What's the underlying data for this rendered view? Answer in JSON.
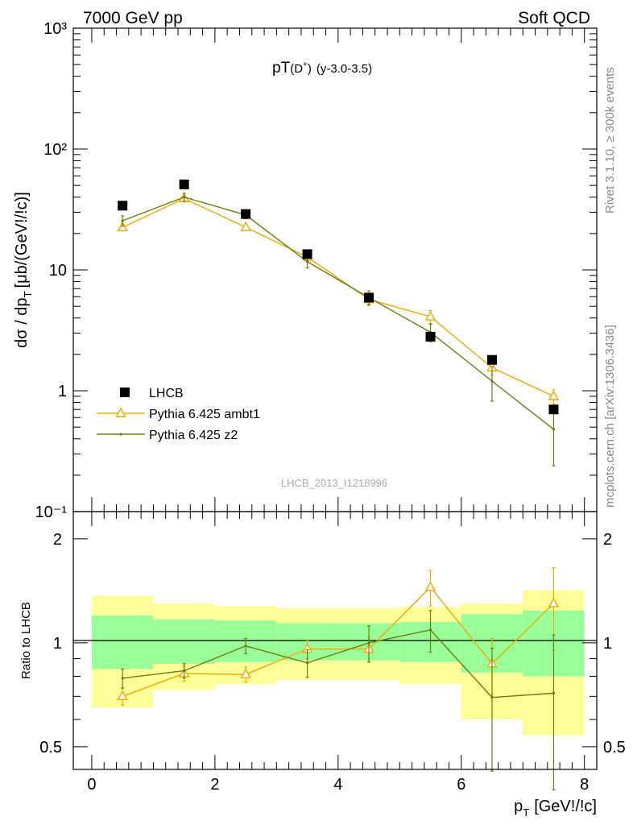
{
  "header": {
    "left": "7000 GeV pp",
    "right": "Soft QCD"
  },
  "side_labels": {
    "rivet": "Rivet 3.1.10, ≥ 300k events",
    "mcplots": "mcplots.cern.ch [arXiv:1306.3436]"
  },
  "colors": {
    "data": "#000000",
    "ambt1": "#f0a800",
    "z2": "#6b7d10",
    "band_inner": "#99ff99",
    "band_outer": "#ffff99"
  },
  "chart_data": [
    {
      "type": "scatter",
      "title": "pT",
      "title_sub": "D",
      "title_sup": "+",
      "title_suffix": "(y-3.0-3.5)",
      "watermark": "LHCB_2013_I1218996",
      "ylabel": "dσ / dp",
      "ylabel_sub": "T",
      "ylabel_suffix": "[μb/(GeV!/!c)]",
      "yscale": "log",
      "ylim": [
        0.1,
        1000
      ],
      "ytick_labels": [
        "10⁻¹",
        "1",
        "10",
        "10²",
        "10³"
      ],
      "xlim": [
        -0.3,
        8.2
      ],
      "legend_position": "lower-left",
      "series": [
        {
          "name": "LHCB",
          "style": "square",
          "x": [
            0.5,
            1.5,
            2.5,
            3.5,
            4.5,
            5.5,
            6.5,
            7.5
          ],
          "y": [
            34,
            51,
            29,
            13.5,
            5.9,
            2.8,
            1.8,
            0.7
          ],
          "yerr": [
            0,
            0,
            0,
            0,
            0,
            0,
            0,
            0
          ]
        },
        {
          "name": "Pythia 6.425 ambt1",
          "style": "triangle",
          "x": [
            0.5,
            1.5,
            2.5,
            3.5,
            4.5,
            5.5,
            6.5,
            7.5
          ],
          "y": [
            22.5,
            39,
            22.5,
            12.8,
            5.7,
            4.1,
            1.55,
            0.9
          ],
          "yerr": [
            1.5,
            2,
            1.2,
            1.0,
            0.5,
            0.5,
            0.2,
            0.12
          ]
        },
        {
          "name": "Pythia 6.425 z2",
          "style": "dot",
          "x": [
            0.5,
            1.5,
            2.5,
            3.5,
            4.5,
            5.5,
            6.5,
            7.5
          ],
          "y": [
            25.5,
            40,
            28.5,
            11.7,
            5.9,
            3.05,
            1.2,
            0.48
          ],
          "yerr": [
            2.5,
            3,
            2.0,
            1.3,
            0.8,
            0.5,
            0.38,
            0.24
          ]
        }
      ]
    },
    {
      "type": "scatter",
      "ylabel": "Ratio to LHCB",
      "xlabel": "p",
      "xlabel_sub": "T",
      "xlabel_suffix": "[GeV!/!c]",
      "yscale": "log",
      "ylim": [
        0.43,
        2.4
      ],
      "ytick_labels": [
        "0.5",
        "1",
        "2"
      ],
      "xlim": [
        -0.3,
        8.2
      ],
      "xtick_labels": [
        "0",
        "2",
        "4",
        "6",
        "8"
      ],
      "bands": [
        {
          "x0": 0,
          "x1": 1,
          "inner": [
            0.84,
            1.2
          ],
          "outer": [
            0.65,
            1.37
          ]
        },
        {
          "x0": 1,
          "x1": 2,
          "inner": [
            0.87,
            1.17
          ],
          "outer": [
            0.73,
            1.3
          ]
        },
        {
          "x0": 2,
          "x1": 3,
          "inner": [
            0.88,
            1.16
          ],
          "outer": [
            0.76,
            1.28
          ]
        },
        {
          "x0": 3,
          "x1": 4,
          "inner": [
            0.89,
            1.14
          ],
          "outer": [
            0.78,
            1.26
          ]
        },
        {
          "x0": 4,
          "x1": 5,
          "inner": [
            0.89,
            1.14
          ],
          "outer": [
            0.78,
            1.26
          ]
        },
        {
          "x0": 5,
          "x1": 6,
          "inner": [
            0.88,
            1.15
          ],
          "outer": [
            0.76,
            1.27
          ]
        },
        {
          "x0": 6,
          "x1": 7,
          "inner": [
            0.82,
            1.21
          ],
          "outer": [
            0.6,
            1.3
          ]
        },
        {
          "x0": 7,
          "x1": 8,
          "inner": [
            0.8,
            1.24
          ],
          "outer": [
            0.54,
            1.42
          ]
        }
      ],
      "series": [
        {
          "name": "Pythia 6.425 ambt1",
          "style": "triangle",
          "x": [
            0.5,
            1.5,
            2.5,
            3.5,
            4.5,
            5.5,
            6.5,
            7.5
          ],
          "y": [
            0.7,
            0.815,
            0.81,
            0.96,
            0.96,
            1.45,
            0.87,
            1.3
          ],
          "yerr": [
            0.04,
            0.04,
            0.04,
            0.06,
            0.08,
            0.17,
            0.16,
            0.35
          ]
        },
        {
          "name": "Pythia 6.425 z2",
          "style": "dot",
          "x": [
            0.5,
            1.5,
            2.5,
            3.5,
            4.5,
            5.5,
            6.5,
            7.5
          ],
          "y": [
            0.79,
            0.83,
            0.98,
            0.875,
            1.0,
            1.09,
            0.695,
            0.715
          ],
          "yerr": [
            0.05,
            0.04,
            0.05,
            0.08,
            0.12,
            0.15,
            0.27,
            0.34
          ]
        }
      ]
    }
  ]
}
